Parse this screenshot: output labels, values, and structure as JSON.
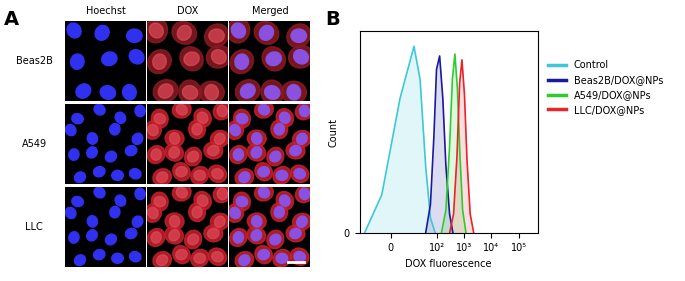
{
  "panel_a": {
    "label": "A",
    "columns": [
      "Hoechst",
      "DOX",
      "Merged"
    ],
    "rows": [
      "Beas2B",
      "A549",
      "LLC"
    ]
  },
  "chart_data": {
    "type": "line",
    "title": "B",
    "x_label": "DOX fluorescence",
    "y_label": "Count",
    "log": "x",
    "xlim": [
      -30,
      500000
    ],
    "xticks": [
      0,
      {
        "value": 100,
        "label": "10²"
      },
      {
        "value": 1000,
        "label": "10³"
      },
      {
        "value": 10000,
        "label": "10⁴"
      },
      {
        "value": 100000,
        "label": "10⁵"
      }
    ],
    "ylim": [
      0,
      105
    ],
    "yticks": [
      0
    ],
    "legend": "center left",
    "series": [
      {
        "name": "Control",
        "color": "#3cc8d8",
        "x": [
          -20,
          -5,
          5,
          15,
          25,
          40,
          60,
          90
        ],
        "values": [
          0,
          20,
          70,
          97,
          80,
          35,
          8,
          0
        ]
      },
      {
        "name": "Beas2B/DOX@NPs",
        "color": "#1a1a9c",
        "x": [
          40,
          60,
          80,
          100,
          130,
          170,
          220,
          300,
          400
        ],
        "values": [
          0,
          15,
          50,
          85,
          92,
          70,
          35,
          10,
          0
        ]
      },
      {
        "name": "A549/DOX@NPs",
        "color": "#2ecc2e",
        "x": [
          150,
          220,
          300,
          380,
          470,
          580,
          720,
          900,
          1200
        ],
        "values": [
          0,
          12,
          45,
          80,
          93,
          75,
          40,
          12,
          0
        ]
      },
      {
        "name": "LLC/DOX@NPs",
        "color": "#e8242c",
        "x": [
          300,
          420,
          560,
          700,
          850,
          1050,
          1300,
          1700,
          2300
        ],
        "values": [
          0,
          10,
          40,
          78,
          90,
          72,
          38,
          10,
          0
        ]
      }
    ]
  }
}
